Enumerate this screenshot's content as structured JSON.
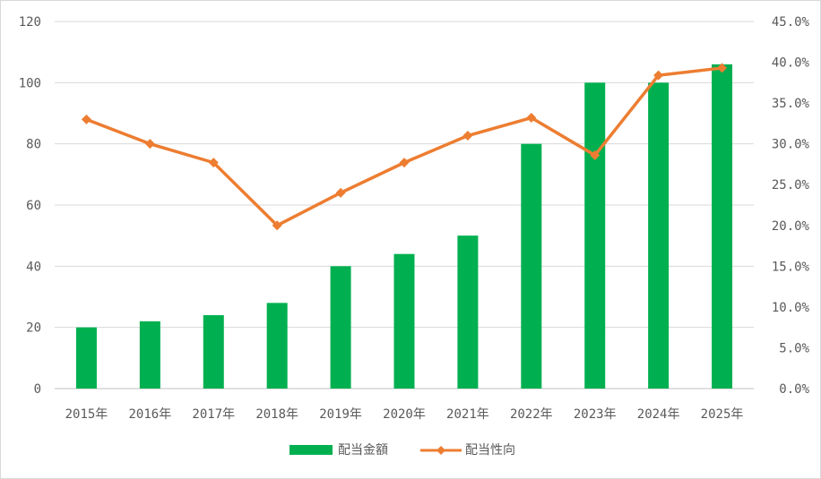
{
  "chart_data": {
    "type": "bar+line",
    "categories": [
      "2015年",
      "2016年",
      "2017年",
      "2018年",
      "2019年",
      "2020年",
      "2021年",
      "2022年",
      "2023年",
      "2024年",
      "2025年"
    ],
    "series": [
      {
        "name": "配当金額",
        "type": "bar",
        "axis": "left",
        "color": "#00b050",
        "values": [
          20,
          22,
          24,
          28,
          40,
          44,
          50,
          80,
          100,
          100,
          106
        ]
      },
      {
        "name": "配当性向",
        "type": "line",
        "axis": "right",
        "color": "#ed7d31",
        "marker": "diamond",
        "values": [
          33.0,
          30.0,
          27.7,
          20.0,
          24.0,
          27.7,
          31.0,
          33.2,
          28.6,
          38.4,
          39.3
        ]
      }
    ],
    "y_left": {
      "min": 0,
      "max": 120,
      "step": 20,
      "tick_labels": [
        "0",
        "20",
        "40",
        "60",
        "80",
        "100",
        "120"
      ]
    },
    "y_right": {
      "min": 0,
      "max": 45,
      "step": 5,
      "tick_labels": [
        "0.0%",
        "5.0%",
        "10.0%",
        "15.0%",
        "20.0%",
        "25.0%",
        "30.0%",
        "35.0%",
        "40.0%",
        "45.0%"
      ]
    },
    "grid": true,
    "legend_position": "bottom-center",
    "title": "",
    "xlabel": "",
    "ylabel": ""
  }
}
